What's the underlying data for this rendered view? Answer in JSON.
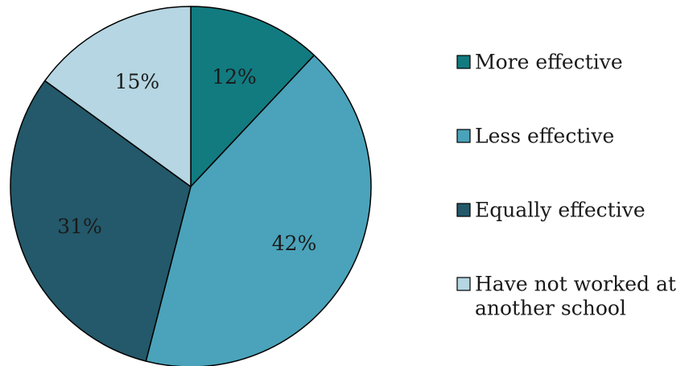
{
  "chart_data": {
    "type": "pie",
    "categories": [
      "More effective",
      "Less effective",
      "Equally effective",
      "Have not worked at another school"
    ],
    "values": [
      12,
      42,
      31,
      15
    ],
    "value_labels": [
      "12%",
      "42%",
      "31%",
      "15%"
    ],
    "colors": [
      "#127b80",
      "#4aa3ba",
      "#23596a",
      "#b5d6e2"
    ],
    "legend": {
      "placement": "right",
      "entries": [
        {
          "lines": [
            "More effective"
          ]
        },
        {
          "lines": [
            "Less effective"
          ]
        },
        {
          "lines": [
            "Equally effective"
          ]
        },
        {
          "lines": [
            "Have not worked at",
            "another school"
          ]
        }
      ]
    },
    "start_angle_deg": 0,
    "direction": "clockwise"
  }
}
